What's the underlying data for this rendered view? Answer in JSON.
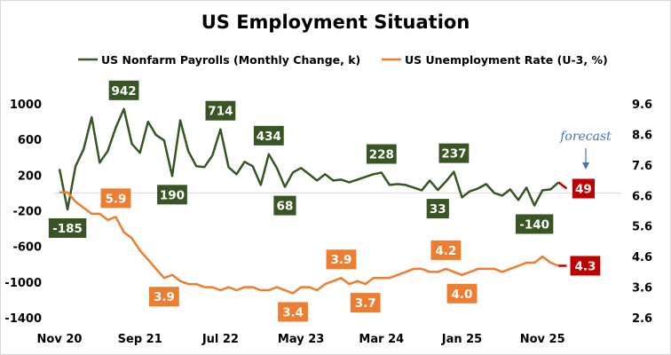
{
  "chart_data": {
    "type": "line",
    "title": "US Employment Situation",
    "x_tick_labels": [
      "Nov 20",
      "Sep 21",
      "Jul 22",
      "May 23",
      "Mar 24",
      "Jan 25",
      "Nov 25"
    ],
    "x_start": "2020-11",
    "x_end": "2026-01",
    "y_left": {
      "ticks": [
        1000,
        600,
        200,
        -200,
        -600,
        -1000,
        -1400
      ],
      "range": [
        -1400,
        1000
      ]
    },
    "y_right": {
      "ticks": [
        9.6,
        8.6,
        7.6,
        6.6,
        5.6,
        4.6,
        3.6,
        2.6
      ],
      "range": [
        2.6,
        9.6
      ]
    },
    "grid": "zero line only",
    "legend_placement": "top",
    "series": [
      {
        "name": "US Nonfarm Payrolls (Monthly Change, k)",
        "axis": "left",
        "color": "#375623",
        "values": [
          269,
          -185,
          300,
          490,
          850,
          340,
          470,
          735,
          942,
          550,
          450,
          800,
          650,
          590,
          190,
          815,
          470,
          300,
          290,
          420,
          714,
          290,
          210,
          350,
          300,
          90,
          434,
          280,
          68,
          230,
          280,
          210,
          140,
          210,
          140,
          150,
          120,
          150,
          180,
          210,
          228,
          90,
          100,
          90,
          60,
          30,
          140,
          33,
          130,
          237,
          -50,
          20,
          50,
          100,
          0,
          -30,
          40,
          -80,
          60,
          -140,
          30,
          40,
          120
        ],
        "forecast": {
          "month": "2026-02",
          "value": 49,
          "label": "49"
        },
        "labels": [
          {
            "month": "2020-12",
            "text": "-185",
            "pos": "below"
          },
          {
            "month": "2021-07",
            "text": "942",
            "pos": "above"
          },
          {
            "month": "2022-01",
            "text": "190",
            "pos": "below"
          },
          {
            "month": "2022-07",
            "text": "714",
            "pos": "above"
          },
          {
            "month": "2023-01",
            "text": "434",
            "pos": "above"
          },
          {
            "month": "2023-03",
            "text": "68",
            "pos": "below"
          },
          {
            "month": "2024-03",
            "text": "228",
            "pos": "above"
          },
          {
            "month": "2024-10",
            "text": "33",
            "pos": "below"
          },
          {
            "month": "2024-12",
            "text": "237",
            "pos": "above"
          },
          {
            "month": "2025-10",
            "text": "-140",
            "pos": "below"
          }
        ]
      },
      {
        "name": "US Unemployment Rate (U-3, %)",
        "axis": "right",
        "color": "#ED7D31",
        "values": [
          6.7,
          6.7,
          6.4,
          6.2,
          6.0,
          6.0,
          5.8,
          5.9,
          5.4,
          5.2,
          4.8,
          4.5,
          4.2,
          3.9,
          4.0,
          3.8,
          3.7,
          3.7,
          3.6,
          3.6,
          3.5,
          3.6,
          3.5,
          3.6,
          3.6,
          3.5,
          3.5,
          3.6,
          3.5,
          3.4,
          3.6,
          3.6,
          3.5,
          3.7,
          3.8,
          3.9,
          3.7,
          3.8,
          3.7,
          3.9,
          3.9,
          3.9,
          4.0,
          4.1,
          4.2,
          4.2,
          4.1,
          4.1,
          4.2,
          4.1,
          4.0,
          4.1,
          4.2,
          4.2,
          4.2,
          4.1,
          4.2,
          4.3,
          4.4,
          4.4,
          4.6,
          4.4,
          4.3
        ],
        "forecast": {
          "month": "2026-02",
          "value": 4.3,
          "label": "4.3"
        },
        "labels": [
          {
            "month": "2021-06",
            "text": "5.9",
            "pos": "above"
          },
          {
            "month": "2021-12",
            "text": "3.9",
            "pos": "below"
          },
          {
            "month": "2023-04",
            "text": "3.4",
            "pos": "below"
          },
          {
            "month": "2023-10",
            "text": "3.9",
            "pos": "above"
          },
          {
            "month": "2024-01",
            "text": "3.7",
            "pos": "below"
          },
          {
            "month": "2024-11",
            "text": "4.2",
            "pos": "above"
          },
          {
            "month": "2025-01",
            "text": "4.0",
            "pos": "below"
          }
        ]
      }
    ],
    "forecast_color": "#C00000",
    "annotation": {
      "text": "forecast",
      "color": "#4472C4"
    }
  }
}
